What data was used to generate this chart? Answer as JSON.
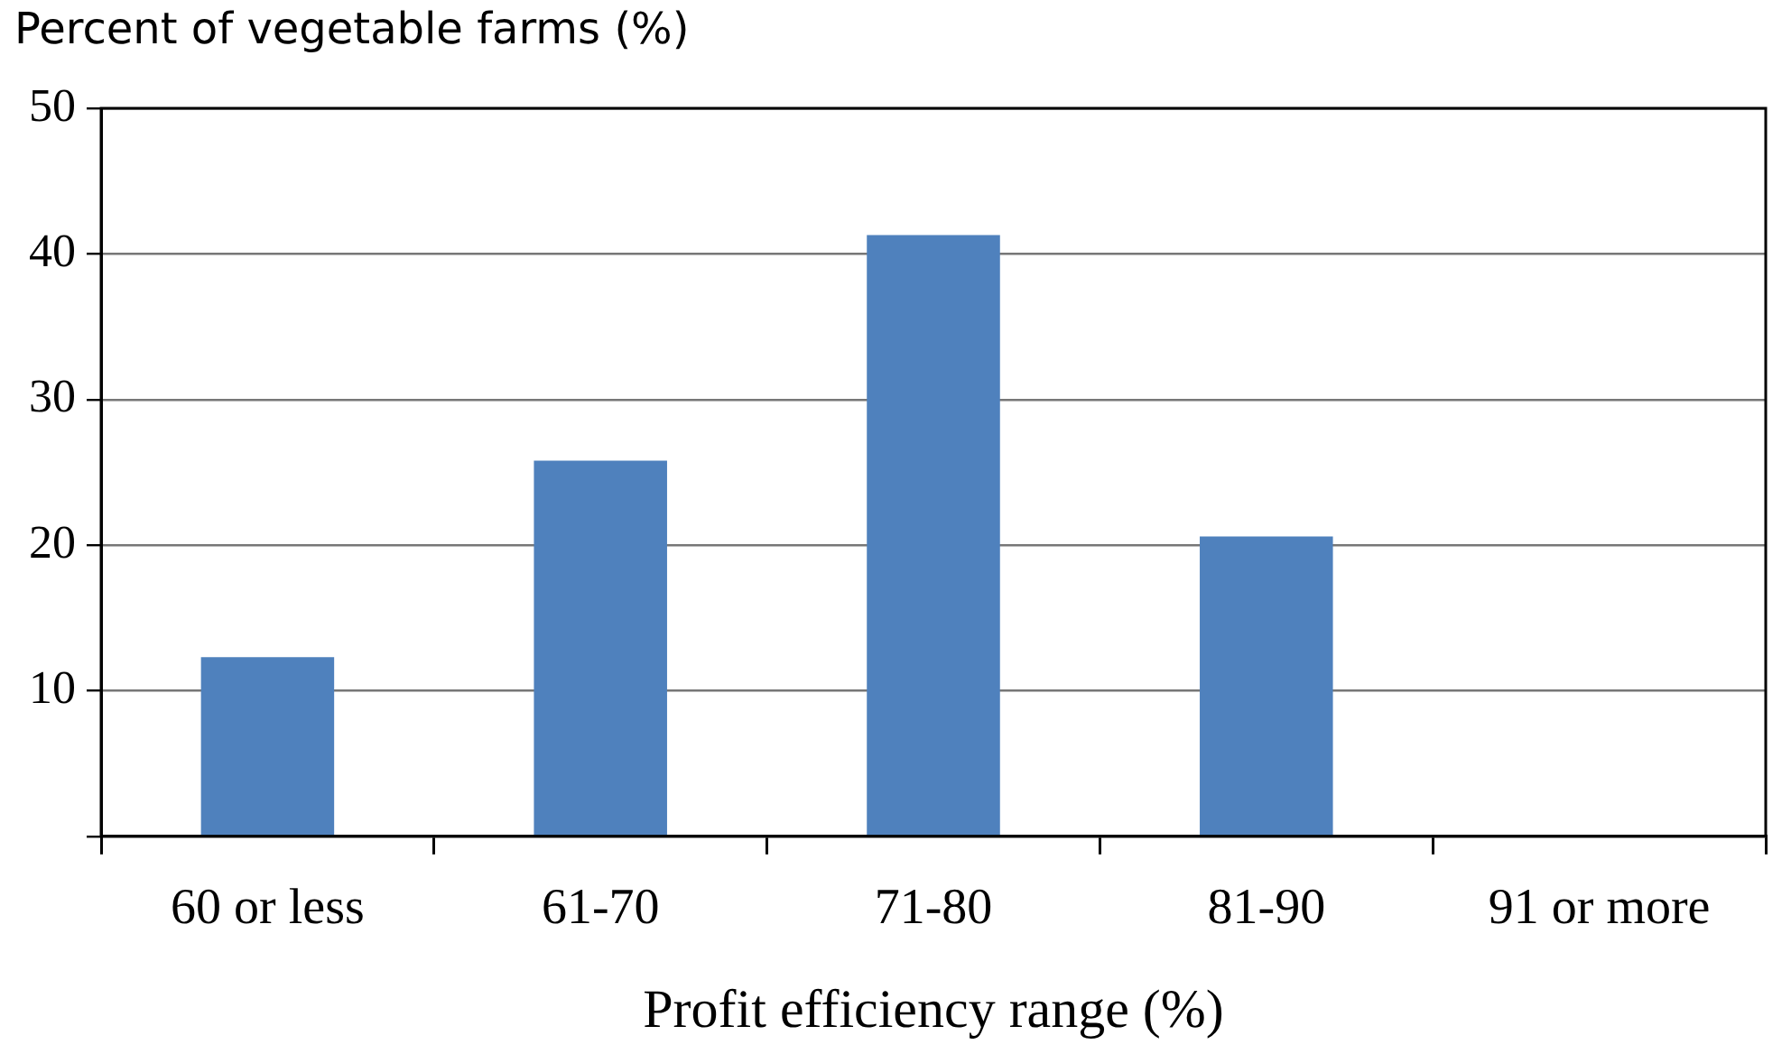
{
  "chart_data": {
    "type": "bar",
    "ylabel": "Percent of vegetable farms (%)",
    "xlabel": "Profit efficiency range (%)",
    "categories": [
      "60 or less",
      "61-70",
      "71-80",
      "81-90",
      "91 or more"
    ],
    "values": [
      12.3,
      25.8,
      41.3,
      20.6,
      0
    ],
    "color": "#4f81bd",
    "ylim": [
      0,
      50
    ],
    "yticks": [
      {
        "value": 0,
        "label": null
      },
      10,
      20,
      30,
      40,
      50
    ],
    "grid": "y",
    "legend": false
  }
}
